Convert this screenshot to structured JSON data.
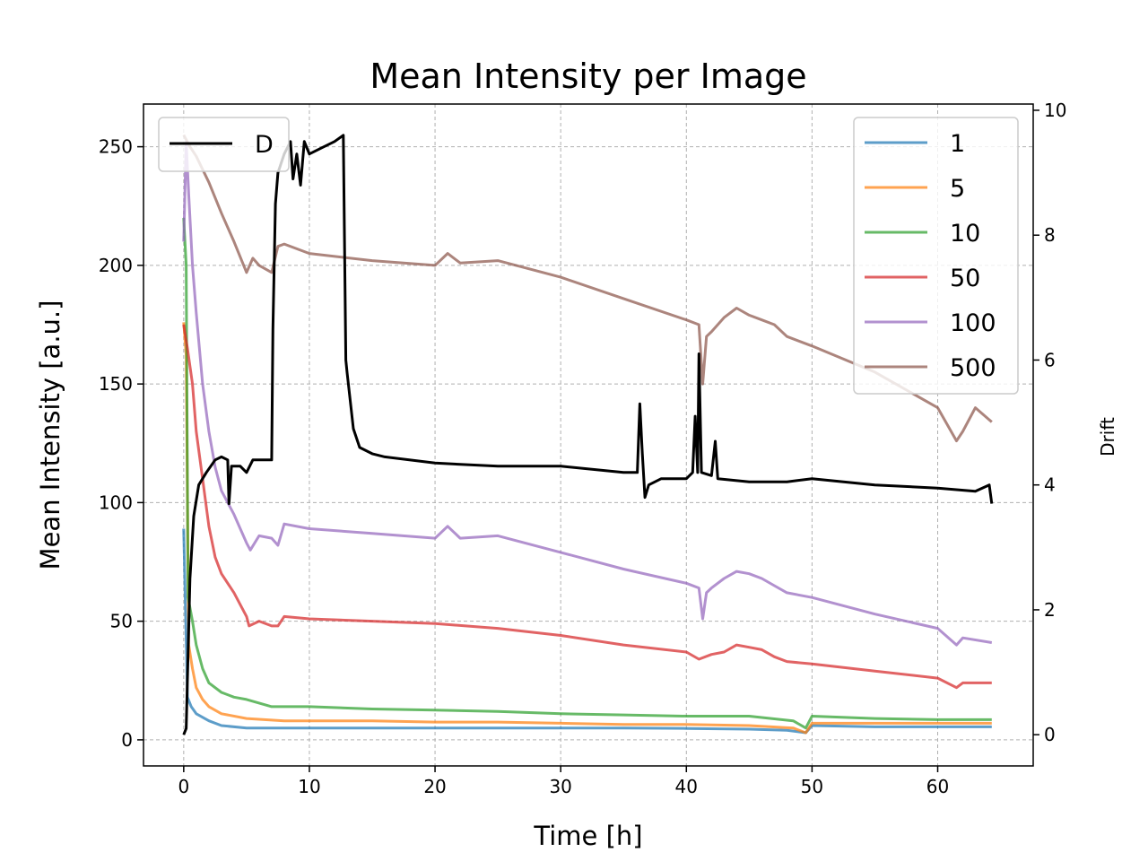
{
  "chart_data": {
    "type": "line",
    "title": "Mean Intensity per Image",
    "xlabel": "Time [h]",
    "ylabel": "Mean Intensity [a.u.]",
    "y2label": "Drift",
    "xlim": [
      -3.2,
      67.6
    ],
    "ylim": [
      -11,
      268
    ],
    "y2lim": [
      -0.5,
      10.1
    ],
    "xticks": [
      0,
      10,
      20,
      30,
      40,
      50,
      60
    ],
    "yticks": [
      0,
      50,
      100,
      150,
      200,
      250
    ],
    "y2ticks": [
      0,
      2,
      4,
      6,
      8,
      10
    ],
    "grid": true,
    "legend_left": {
      "placement": "upper-left",
      "entries": [
        "D"
      ]
    },
    "legend_right": {
      "placement": "upper-right",
      "entries": [
        "1",
        "5",
        "10",
        "50",
        "100",
        "500"
      ]
    },
    "series": [
      {
        "name": "1",
        "color": "#1f77b4",
        "axis": "left",
        "points": [
          [
            0,
            89
          ],
          [
            0.3,
            18
          ],
          [
            0.6,
            14
          ],
          [
            1,
            11
          ],
          [
            2,
            8
          ],
          [
            3,
            6
          ],
          [
            5,
            5
          ],
          [
            10,
            5
          ],
          [
            15,
            5
          ],
          [
            20,
            5
          ],
          [
            25,
            5
          ],
          [
            30,
            5
          ],
          [
            35,
            5
          ],
          [
            40,
            4.8
          ],
          [
            45,
            4.5
          ],
          [
            48,
            4
          ],
          [
            49.5,
            3
          ],
          [
            50,
            6
          ],
          [
            55,
            5.5
          ],
          [
            60,
            5.5
          ],
          [
            64.3,
            5.5
          ]
        ]
      },
      {
        "name": "5",
        "color": "#ff7f0e",
        "axis": "left",
        "points": [
          [
            0,
            176
          ],
          [
            0.2,
            162
          ],
          [
            0.4,
            40
          ],
          [
            0.7,
            30
          ],
          [
            1,
            22
          ],
          [
            1.5,
            17
          ],
          [
            2,
            14
          ],
          [
            3,
            11
          ],
          [
            5,
            9
          ],
          [
            8,
            8
          ],
          [
            10,
            8
          ],
          [
            15,
            8
          ],
          [
            20,
            7.5
          ],
          [
            25,
            7.5
          ],
          [
            30,
            7
          ],
          [
            35,
            6.5
          ],
          [
            40,
            6.5
          ],
          [
            45,
            6
          ],
          [
            48.5,
            5
          ],
          [
            49.5,
            3
          ],
          [
            50,
            7
          ],
          [
            55,
            7
          ],
          [
            60,
            7
          ],
          [
            64.3,
            7
          ]
        ]
      },
      {
        "name": "10",
        "color": "#2ca02c",
        "axis": "left",
        "points": [
          [
            0,
            220
          ],
          [
            0.2,
            200
          ],
          [
            0.35,
            60
          ],
          [
            0.7,
            50
          ],
          [
            1,
            40
          ],
          [
            1.5,
            30
          ],
          [
            2,
            24
          ],
          [
            3,
            20
          ],
          [
            4,
            18
          ],
          [
            5,
            17
          ],
          [
            7,
            14
          ],
          [
            10,
            14
          ],
          [
            15,
            13
          ],
          [
            20,
            12.5
          ],
          [
            25,
            12
          ],
          [
            30,
            11
          ],
          [
            35,
            10.5
          ],
          [
            40,
            10
          ],
          [
            45,
            10
          ],
          [
            48.5,
            8
          ],
          [
            49.5,
            5
          ],
          [
            50,
            10
          ],
          [
            55,
            9
          ],
          [
            60,
            8.5
          ],
          [
            64.3,
            8.5
          ]
        ]
      },
      {
        "name": "50",
        "color": "#d62728",
        "axis": "left",
        "points": [
          [
            0,
            175
          ],
          [
            0.3,
            165
          ],
          [
            0.7,
            150
          ],
          [
            1,
            130
          ],
          [
            1.5,
            110
          ],
          [
            2,
            90
          ],
          [
            2.5,
            77
          ],
          [
            3,
            70
          ],
          [
            4,
            62
          ],
          [
            5,
            52
          ],
          [
            5.2,
            48
          ],
          [
            6,
            50
          ],
          [
            7,
            48
          ],
          [
            7.5,
            48
          ],
          [
            8,
            52
          ],
          [
            10,
            51
          ],
          [
            15,
            50
          ],
          [
            20,
            49
          ],
          [
            25,
            47
          ],
          [
            30,
            44
          ],
          [
            35,
            40
          ],
          [
            40,
            37
          ],
          [
            41,
            34
          ],
          [
            42,
            36
          ],
          [
            43,
            37
          ],
          [
            44,
            40
          ],
          [
            45,
            39
          ],
          [
            46,
            38
          ],
          [
            47,
            35
          ],
          [
            48,
            33
          ],
          [
            50,
            32
          ],
          [
            55,
            29
          ],
          [
            60,
            26
          ],
          [
            61.5,
            22
          ],
          [
            62,
            24
          ],
          [
            64.3,
            24
          ]
        ]
      },
      {
        "name": "100",
        "color": "#9467bd",
        "axis": "left",
        "points": [
          [
            0,
            210
          ],
          [
            0.2,
            252
          ],
          [
            0.4,
            230
          ],
          [
            0.7,
            200
          ],
          [
            1,
            180
          ],
          [
            1.5,
            150
          ],
          [
            2,
            130
          ],
          [
            2.5,
            115
          ],
          [
            3,
            105
          ],
          [
            4,
            95
          ],
          [
            5,
            83
          ],
          [
            5.3,
            80
          ],
          [
            6,
            86
          ],
          [
            7,
            85
          ],
          [
            7.5,
            82
          ],
          [
            8,
            91
          ],
          [
            10,
            89
          ],
          [
            15,
            87
          ],
          [
            20,
            85
          ],
          [
            21,
            90
          ],
          [
            22,
            85
          ],
          [
            25,
            86
          ],
          [
            30,
            79
          ],
          [
            35,
            72
          ],
          [
            40,
            66
          ],
          [
            41,
            64
          ],
          [
            41.3,
            51
          ],
          [
            41.6,
            62
          ],
          [
            42,
            64
          ],
          [
            43,
            68
          ],
          [
            44,
            71
          ],
          [
            45,
            70
          ],
          [
            46,
            68
          ],
          [
            47,
            65
          ],
          [
            48,
            62
          ],
          [
            50,
            60
          ],
          [
            55,
            53
          ],
          [
            60,
            47
          ],
          [
            61.5,
            40
          ],
          [
            62,
            43
          ],
          [
            64.3,
            41
          ]
        ]
      },
      {
        "name": "500",
        "color": "#8c564b",
        "axis": "left",
        "points": [
          [
            0,
            255
          ],
          [
            0.5,
            250
          ],
          [
            1,
            246
          ],
          [
            2,
            235
          ],
          [
            3,
            222
          ],
          [
            4,
            210
          ],
          [
            5,
            197
          ],
          [
            5.5,
            203
          ],
          [
            6,
            200
          ],
          [
            7,
            197
          ],
          [
            7.5,
            208
          ],
          [
            8,
            209
          ],
          [
            10,
            205
          ],
          [
            15,
            202
          ],
          [
            20,
            200
          ],
          [
            21,
            205
          ],
          [
            22,
            201
          ],
          [
            25,
            202
          ],
          [
            30,
            195
          ],
          [
            35,
            186
          ],
          [
            40,
            177
          ],
          [
            41,
            175
          ],
          [
            41.3,
            150
          ],
          [
            41.6,
            170
          ],
          [
            42,
            172
          ],
          [
            43,
            178
          ],
          [
            44,
            182
          ],
          [
            45,
            179
          ],
          [
            46,
            177
          ],
          [
            47,
            175
          ],
          [
            48,
            170
          ],
          [
            50,
            166
          ],
          [
            55,
            155
          ],
          [
            60,
            140
          ],
          [
            61.5,
            126
          ],
          [
            62,
            130
          ],
          [
            63,
            140
          ],
          [
            64.3,
            134
          ]
        ]
      },
      {
        "name": "D",
        "color": "#000000",
        "axis": "right",
        "points": [
          [
            0,
            0
          ],
          [
            0.2,
            0.1
          ],
          [
            0.5,
            2.5
          ],
          [
            0.8,
            3.5
          ],
          [
            1.2,
            4.0
          ],
          [
            1.8,
            4.2
          ],
          [
            2.5,
            4.4
          ],
          [
            3,
            4.45
          ],
          [
            3.5,
            4.4
          ],
          [
            3.6,
            3.7
          ],
          [
            3.8,
            4.3
          ],
          [
            4.5,
            4.3
          ],
          [
            5,
            4.2
          ],
          [
            5.5,
            4.4
          ],
          [
            6,
            4.4
          ],
          [
            7,
            4.4
          ],
          [
            7.1,
            6.5
          ],
          [
            7.3,
            8.5
          ],
          [
            7.5,
            9.0
          ],
          [
            8,
            9.3
          ],
          [
            8.5,
            9.5
          ],
          [
            8.7,
            8.9
          ],
          [
            9,
            9.3
          ],
          [
            9.3,
            8.8
          ],
          [
            9.6,
            9.5
          ],
          [
            10,
            9.3
          ],
          [
            11,
            9.4
          ],
          [
            12,
            9.5
          ],
          [
            12.7,
            9.6
          ],
          [
            12.9,
            6.0
          ],
          [
            13,
            5.8
          ],
          [
            13.5,
            4.9
          ],
          [
            14,
            4.6
          ],
          [
            15,
            4.5
          ],
          [
            16,
            4.45
          ],
          [
            20,
            4.35
          ],
          [
            25,
            4.3
          ],
          [
            30,
            4.3
          ],
          [
            35,
            4.2
          ],
          [
            36.1,
            4.2
          ],
          [
            36.3,
            5.3
          ],
          [
            36.5,
            4.5
          ],
          [
            36.7,
            3.8
          ],
          [
            37,
            4.0
          ],
          [
            38,
            4.1
          ],
          [
            40,
            4.1
          ],
          [
            40.5,
            4.2
          ],
          [
            40.7,
            5.1
          ],
          [
            40.9,
            4.2
          ],
          [
            41,
            6.1
          ],
          [
            41.2,
            4.2
          ],
          [
            42,
            4.15
          ],
          [
            42.3,
            4.7
          ],
          [
            42.5,
            4.1
          ],
          [
            45,
            4.05
          ],
          [
            48,
            4.05
          ],
          [
            50,
            4.1
          ],
          [
            55,
            4.0
          ],
          [
            60,
            3.95
          ],
          [
            63,
            3.9
          ],
          [
            64.1,
            4.0
          ],
          [
            64.3,
            3.7
          ]
        ]
      }
    ]
  }
}
